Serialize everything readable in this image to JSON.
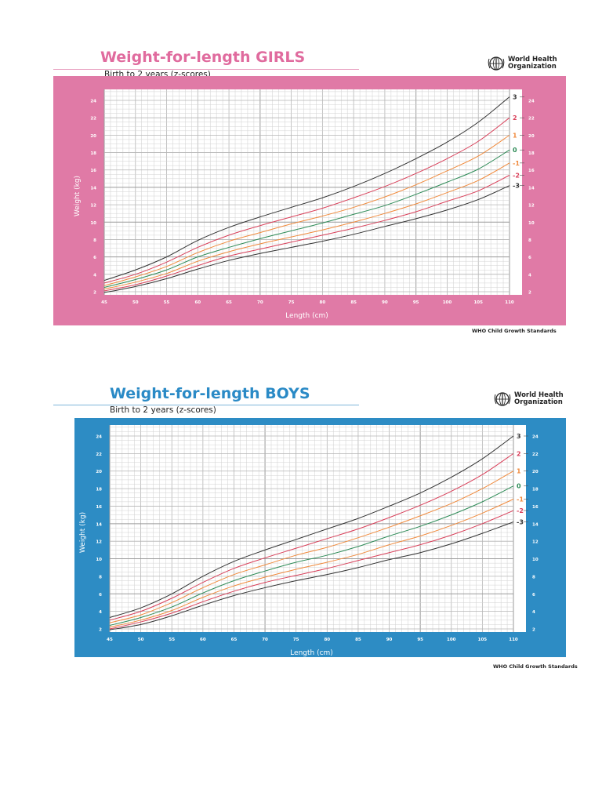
{
  "girls": {
    "title": "Weight-for-length GIRLS",
    "subtitle": "Birth to 2 years (z-scores)",
    "org_name_line1": "World Health",
    "org_name_line2": "Organization",
    "footer": "WHO Child Growth Standards",
    "ylabel": "Weight (kg)",
    "xlabel": "Length (cm)",
    "accent": "#e07aa6",
    "title_color": "#e06b9e"
  },
  "boys": {
    "title": "Weight-for-length BOYS",
    "subtitle": "Birth to 2 years (z-scores)",
    "org_name_line1": "World Health",
    "org_name_line2": "Organization",
    "footer": "WHO Child Growth Standards",
    "ylabel": "Weight (kg)",
    "xlabel": "Length (cm)",
    "accent": "#2d8cc4",
    "title_color": "#2a8ac6"
  },
  "series_colors": {
    "3": "#333333",
    "2": "#d9405a",
    "1": "#f08a3c",
    "0": "#2e8b57",
    "-1": "#f08a3c",
    "-2": "#d9405a",
    "-3": "#333333"
  },
  "chart_data": [
    {
      "type": "line",
      "title": "Weight-for-length GIRLS",
      "subtitle": "Birth to 2 years (z-scores)",
      "xlabel": "Length (cm)",
      "ylabel": "Weight (kg)",
      "xlim": [
        45,
        110
      ],
      "ylim": [
        2,
        24
      ],
      "x_ticks": [
        45,
        50,
        55,
        60,
        65,
        70,
        75,
        80,
        85,
        90,
        95,
        100,
        105,
        110
      ],
      "y_ticks": [
        2,
        4,
        6,
        8,
        10,
        12,
        14,
        16,
        18,
        20,
        22,
        24
      ],
      "grid": true,
      "legend_position": "right-end labels",
      "x": [
        45,
        50,
        55,
        60,
        65,
        70,
        75,
        80,
        85,
        90,
        95,
        100,
        105,
        110
      ],
      "series": [
        {
          "name": "3",
          "values": [
            3.3,
            4.5,
            6.0,
            7.9,
            9.4,
            10.6,
            11.7,
            12.8,
            14.1,
            15.6,
            17.3,
            19.2,
            21.5,
            24.4
          ]
        },
        {
          "name": "2",
          "values": [
            3.0,
            4.0,
            5.4,
            7.1,
            8.5,
            9.6,
            10.6,
            11.6,
            12.8,
            14.1,
            15.6,
            17.3,
            19.3,
            22.0
          ]
        },
        {
          "name": "1",
          "values": [
            2.7,
            3.7,
            4.9,
            6.5,
            7.8,
            8.8,
            9.8,
            10.7,
            11.7,
            12.9,
            14.3,
            15.9,
            17.6,
            20.0
          ]
        },
        {
          "name": "0",
          "values": [
            2.5,
            3.4,
            4.5,
            6.0,
            7.1,
            8.1,
            9.0,
            9.9,
            10.9,
            11.9,
            13.2,
            14.6,
            16.1,
            18.3
          ]
        },
        {
          "name": "-1",
          "values": [
            2.3,
            3.1,
            4.1,
            5.5,
            6.6,
            7.5,
            8.3,
            9.1,
            10.0,
            11.0,
            12.1,
            13.4,
            14.8,
            16.8
          ]
        },
        {
          "name": "-2",
          "values": [
            2.1,
            2.8,
            3.8,
            5.0,
            6.1,
            6.9,
            7.7,
            8.5,
            9.3,
            10.2,
            11.2,
            12.4,
            13.6,
            15.4
          ]
        },
        {
          "name": "-3",
          "values": [
            1.9,
            2.6,
            3.5,
            4.6,
            5.6,
            6.4,
            7.1,
            7.8,
            8.6,
            9.5,
            10.4,
            11.4,
            12.6,
            14.2
          ]
        }
      ]
    },
    {
      "type": "line",
      "title": "Weight-for-length BOYS",
      "subtitle": "Birth to 2 years (z-scores)",
      "xlabel": "Length (cm)",
      "ylabel": "Weight (kg)",
      "xlim": [
        45,
        110
      ],
      "ylim": [
        2,
        24
      ],
      "x_ticks": [
        45,
        50,
        55,
        60,
        65,
        70,
        75,
        80,
        85,
        90,
        95,
        100,
        105,
        110
      ],
      "y_ticks": [
        2,
        4,
        6,
        8,
        10,
        12,
        14,
        16,
        18,
        20,
        22,
        24
      ],
      "grid": true,
      "legend_position": "right-end labels",
      "x": [
        45,
        50,
        55,
        60,
        65,
        70,
        75,
        80,
        85,
        90,
        95,
        100,
        105,
        110
      ],
      "series": [
        {
          "name": "3",
          "values": [
            3.3,
            4.4,
            6.0,
            8.0,
            9.7,
            11.0,
            12.2,
            13.4,
            14.6,
            16.0,
            17.5,
            19.3,
            21.4,
            24.0
          ]
        },
        {
          "name": "2",
          "values": [
            3.0,
            4.0,
            5.5,
            7.3,
            8.9,
            10.1,
            11.2,
            12.3,
            13.4,
            14.7,
            16.1,
            17.7,
            19.6,
            22.0
          ]
        },
        {
          "name": "1",
          "values": [
            2.7,
            3.6,
            5.0,
            6.7,
            8.2,
            9.3,
            10.4,
            11.3,
            12.4,
            13.6,
            14.9,
            16.3,
            18.0,
            20.0
          ]
        },
        {
          "name": "0",
          "values": [
            2.4,
            3.3,
            4.5,
            6.1,
            7.5,
            8.6,
            9.6,
            10.4,
            11.4,
            12.6,
            13.7,
            15.0,
            16.5,
            18.3
          ]
        },
        {
          "name": "-1",
          "values": [
            2.2,
            3.0,
            4.1,
            5.6,
            6.9,
            7.9,
            8.8,
            9.6,
            10.5,
            11.6,
            12.6,
            13.8,
            15.2,
            16.8
          ]
        },
        {
          "name": "-2",
          "values": [
            2.0,
            2.8,
            3.8,
            5.1,
            6.3,
            7.3,
            8.1,
            8.9,
            9.8,
            10.7,
            11.6,
            12.7,
            14.0,
            15.5
          ]
        },
        {
          "name": "-3",
          "values": [
            1.9,
            2.5,
            3.5,
            4.7,
            5.8,
            6.7,
            7.5,
            8.2,
            9.0,
            9.9,
            10.7,
            11.7,
            12.9,
            14.2
          ]
        }
      ]
    }
  ]
}
